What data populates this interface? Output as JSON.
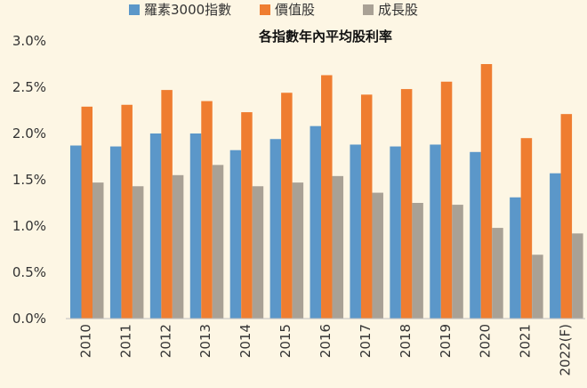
{
  "chart_data": {
    "type": "bar",
    "title": "各指數年內平均股利率",
    "categories": [
      "2010",
      "2011",
      "2012",
      "2013",
      "2014",
      "2015",
      "2016",
      "2017",
      "2018",
      "2019",
      "2020",
      "2021",
      "2022(F)"
    ],
    "series": [
      {
        "name": "羅素3000指數",
        "color": "#5b97c9",
        "values": [
          1.87,
          1.86,
          2.0,
          2.0,
          1.82,
          1.94,
          2.08,
          1.88,
          1.86,
          1.88,
          1.8,
          1.31,
          1.57
        ]
      },
      {
        "name": "價值股",
        "color": "#ef7d30",
        "values": [
          2.29,
          2.31,
          2.47,
          2.35,
          2.23,
          2.44,
          2.63,
          2.42,
          2.48,
          2.56,
          2.75,
          1.95,
          2.21
        ]
      },
      {
        "name": "成長股",
        "color": "#a9a195",
        "values": [
          1.47,
          1.43,
          1.55,
          1.66,
          1.43,
          1.47,
          1.54,
          1.36,
          1.25,
          1.23,
          0.98,
          0.69,
          0.92
        ]
      }
    ],
    "ylim": [
      0,
      3.0
    ],
    "yticks": [
      "0.0%",
      "0.5%",
      "1.0%",
      "1.5%",
      "2.0%",
      "2.5%",
      "3.0%"
    ],
    "grid": false,
    "legend": "top"
  }
}
